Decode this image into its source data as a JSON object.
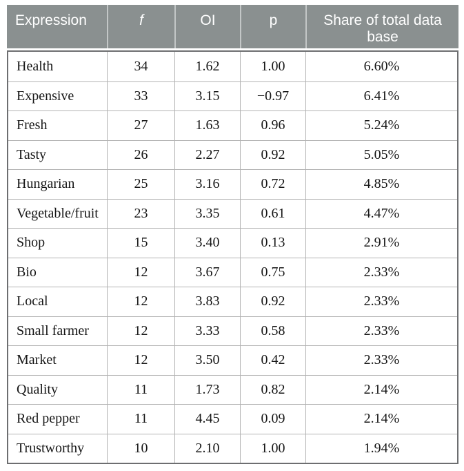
{
  "colors": {
    "header_bg": "#8a9090",
    "header_text": "#ffffff",
    "header_divider": "#c3c7c7",
    "outer_border": "#6d6e70",
    "grid_line": "#b3b3b3",
    "body_text": "#161616"
  },
  "table": {
    "columns": [
      {
        "label": "Expression"
      },
      {
        "label": "f",
        "italic": true
      },
      {
        "label": "OI"
      },
      {
        "label": "p"
      },
      {
        "label": "Share of total data base"
      }
    ],
    "rows": [
      {
        "expression": "Health",
        "f": "34",
        "oi": "1.62",
        "p": "1.00",
        "share": "6.60%"
      },
      {
        "expression": "Expensive",
        "f": "33",
        "oi": "3.15",
        "p": "−0.97",
        "share": "6.41%"
      },
      {
        "expression": "Fresh",
        "f": "27",
        "oi": "1.63",
        "p": "0.96",
        "share": "5.24%"
      },
      {
        "expression": "Tasty",
        "f": "26",
        "oi": "2.27",
        "p": "0.92",
        "share": "5.05%"
      },
      {
        "expression": "Hungarian",
        "f": "25",
        "oi": "3.16",
        "p": "0.72",
        "share": "4.85%"
      },
      {
        "expression": "Vegetable/fruit",
        "f": "23",
        "oi": "3.35",
        "p": "0.61",
        "share": "4.47%"
      },
      {
        "expression": "Shop",
        "f": "15",
        "oi": "3.40",
        "p": "0.13",
        "share": "2.91%"
      },
      {
        "expression": "Bio",
        "f": "12",
        "oi": "3.67",
        "p": "0.75",
        "share": "2.33%"
      },
      {
        "expression": "Local",
        "f": "12",
        "oi": "3.83",
        "p": "0.92",
        "share": "2.33%"
      },
      {
        "expression": "Small farmer",
        "f": "12",
        "oi": "3.33",
        "p": "0.58",
        "share": "2.33%"
      },
      {
        "expression": "Market",
        "f": "12",
        "oi": "3.50",
        "p": "0.42",
        "share": "2.33%"
      },
      {
        "expression": "Quality",
        "f": "11",
        "oi": "1.73",
        "p": "0.82",
        "share": "2.14%"
      },
      {
        "expression": "Red pepper",
        "f": "11",
        "oi": "4.45",
        "p": "0.09",
        "share": "2.14%"
      },
      {
        "expression": "Trustworthy",
        "f": "10",
        "oi": "2.10",
        "p": "1.00",
        "share": "1.94%"
      }
    ]
  },
  "chart_data": {
    "type": "table",
    "title": "",
    "columns": [
      "Expression",
      "f",
      "OI",
      "p",
      "Share of total data base"
    ],
    "rows": [
      [
        "Health",
        34,
        1.62,
        1.0,
        "6.60%"
      ],
      [
        "Expensive",
        33,
        3.15,
        -0.97,
        "6.41%"
      ],
      [
        "Fresh",
        27,
        1.63,
        0.96,
        "5.24%"
      ],
      [
        "Tasty",
        26,
        2.27,
        0.92,
        "5.05%"
      ],
      [
        "Hungarian",
        25,
        3.16,
        0.72,
        "4.85%"
      ],
      [
        "Vegetable/fruit",
        23,
        3.35,
        0.61,
        "4.47%"
      ],
      [
        "Shop",
        15,
        3.4,
        0.13,
        "2.91%"
      ],
      [
        "Bio",
        12,
        3.67,
        0.75,
        "2.33%"
      ],
      [
        "Local",
        12,
        3.83,
        0.92,
        "2.33%"
      ],
      [
        "Small farmer",
        12,
        3.33,
        0.58,
        "2.33%"
      ],
      [
        "Market",
        12,
        3.5,
        0.42,
        "2.33%"
      ],
      [
        "Quality",
        11,
        1.73,
        0.82,
        "2.14%"
      ],
      [
        "Red pepper",
        11,
        4.45,
        0.09,
        "2.14%"
      ],
      [
        "Trustworthy",
        10,
        2.1,
        1.0,
        "1.94%"
      ]
    ]
  }
}
